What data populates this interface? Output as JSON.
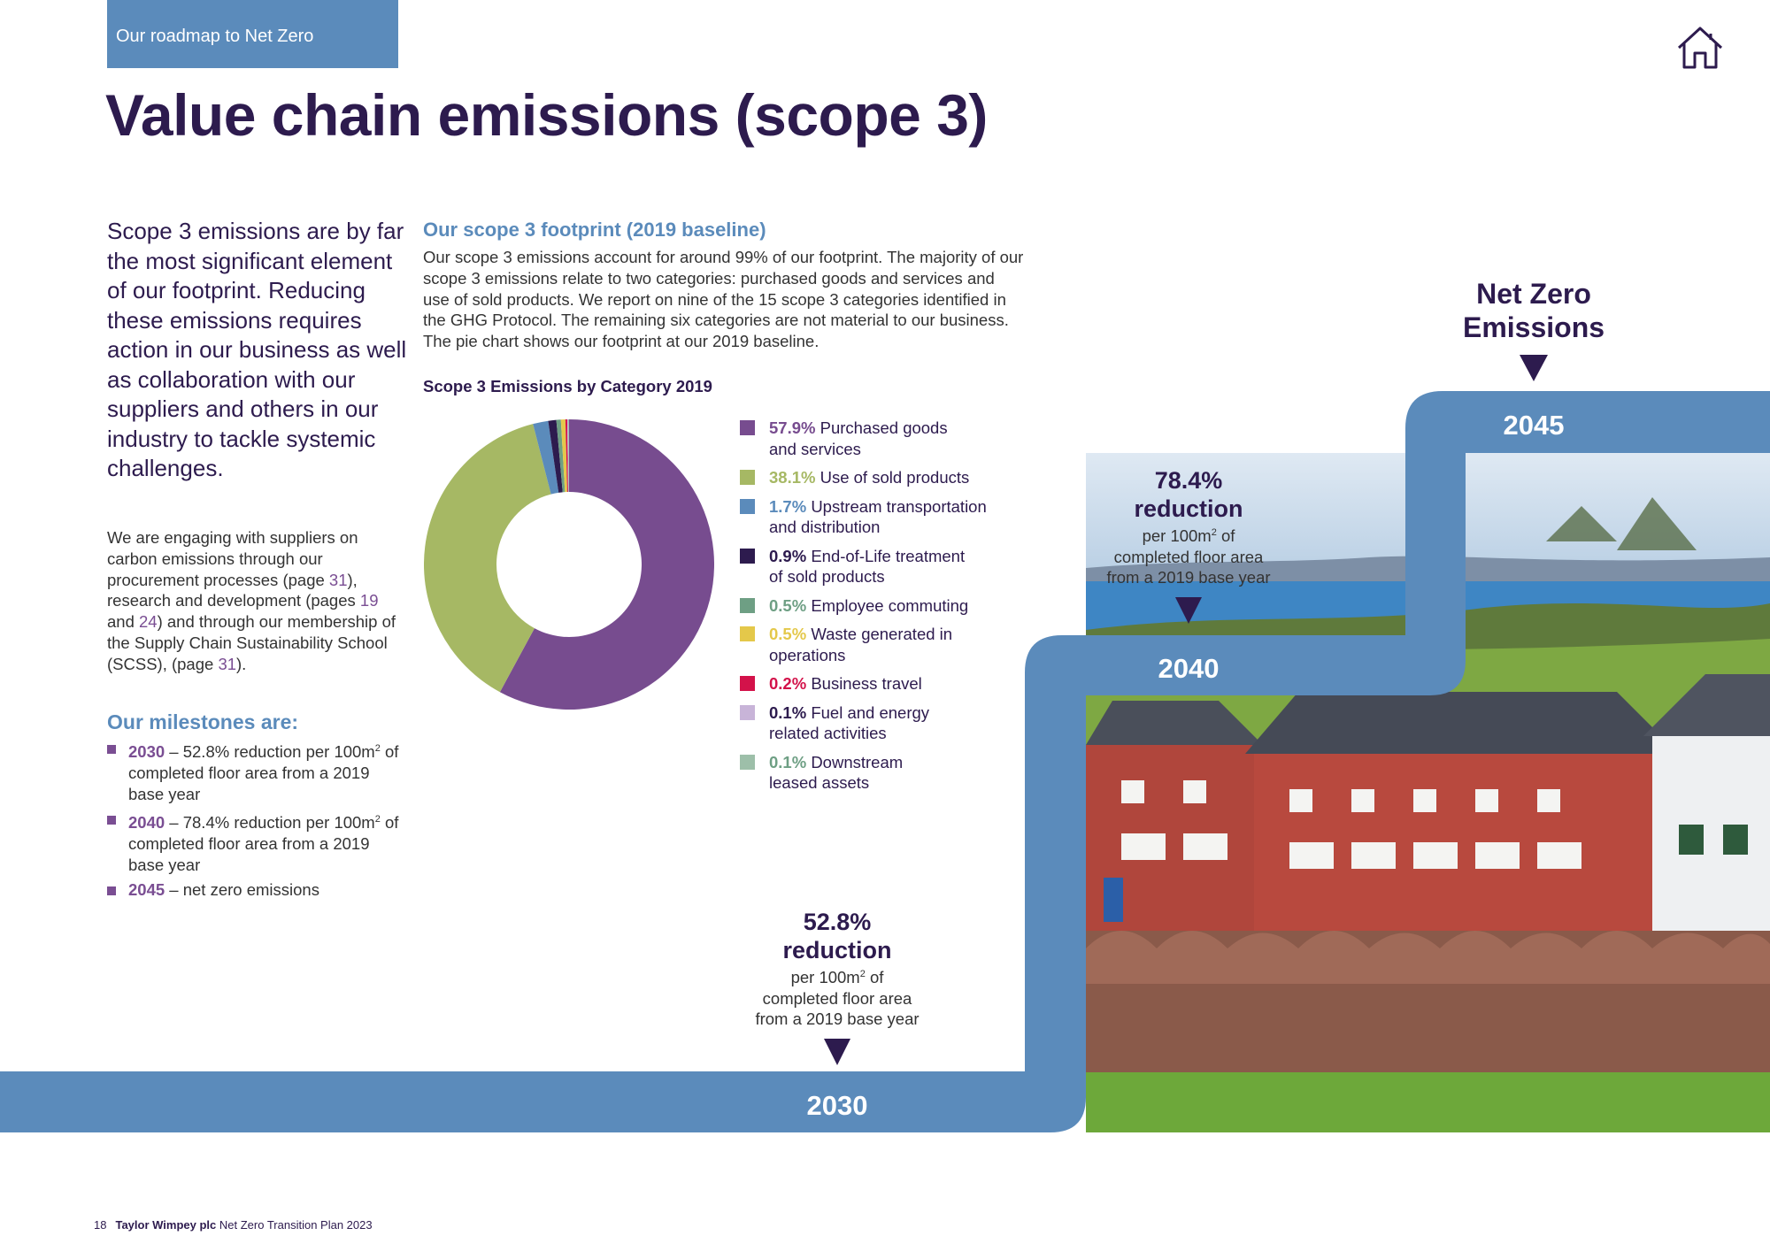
{
  "header": {
    "section_tab": "Our roadmap to Net Zero",
    "title": "Value chain emissions (scope 3)",
    "home_icon": "home-icon"
  },
  "intro": {
    "lead": "Scope 3 emissions are by far the most significant element of our footprint. Reducing these emissions requires action in our business as well as collaboration with our suppliers and others in our industry to tackle systemic challenges.",
    "body": {
      "t1": "We are engaging with suppliers on carbon emissions through our procurement processes (page ",
      "p1": "31",
      "t2": "), research and development (pages ",
      "p2": "19",
      "t3": " and ",
      "p3": "24",
      "t4": ") and through our membership of the Supply Chain Sustainability School (SCSS), (page ",
      "p4": "31",
      "t5": ")."
    }
  },
  "milestones": {
    "heading": "Our milestones are:",
    "items": [
      {
        "year": "2030",
        "text_before": " – 52.8% reduction per 100m",
        "sup": "2",
        "text_after": " of completed floor area from a 2019 base year"
      },
      {
        "year": "2040",
        "text_before": " – 78.4% reduction per 100m",
        "sup": "2",
        "text_after": " of completed floor area from a 2019 base year"
      },
      {
        "year": "2045",
        "text_before": " – net zero emissions",
        "sup": "",
        "text_after": ""
      }
    ]
  },
  "footprint": {
    "heading": "Our scope 3 footprint (2019 baseline)",
    "body": "Our scope 3 emissions account for around 99% of our footprint. The majority of our scope 3 emissions relate to two categories: purchased goods and services and use of sold products. We report on nine of the 15 scope 3 categories identified in the GHG Protocol. The remaining six categories are not material to our business. The pie chart shows our footprint at our 2019 baseline."
  },
  "chart_data": {
    "type": "pie",
    "style": "donut",
    "title": "Scope 3 Emissions by Category 2019",
    "legend_position": "right",
    "slices": [
      {
        "label_line1": "Purchased goods",
        "label_line2": "and services",
        "pct_label": "57.9%",
        "value": 57.9,
        "color": "#774c8f"
      },
      {
        "label_line1": "Use of sold products",
        "label_line2": "",
        "pct_label": "38.1%",
        "value": 38.1,
        "color": "#a6b864"
      },
      {
        "label_line1": "Upstream transportation",
        "label_line2": "and distribution",
        "pct_label": "1.7%",
        "value": 1.7,
        "color": "#5b8bbb"
      },
      {
        "label_line1": "End-of-Life treatment",
        "label_line2": "of sold products",
        "pct_label": "0.9%",
        "value": 0.9,
        "color": "#2d1b4e"
      },
      {
        "label_line1": "Employee commuting",
        "label_line2": "",
        "pct_label": "0.5%",
        "value": 0.5,
        "color": "#6e9f84"
      },
      {
        "label_line1": "Waste generated in",
        "label_line2": "operations",
        "pct_label": "0.5%",
        "value": 0.5,
        "color": "#e4c84a"
      },
      {
        "label_line1": "Business travel",
        "label_line2": "",
        "pct_label": "0.2%",
        "value": 0.2,
        "color": "#d3124a"
      },
      {
        "label_line1": "Fuel and energy",
        "label_line2": "related activities",
        "pct_label": "0.1%",
        "value": 0.1,
        "color": "#c8b4d8"
      },
      {
        "label_line1": "Downstream",
        "label_line2": "leased assets",
        "pct_label": "0.1%",
        "value": 0.1,
        "color": "#9dbfa9"
      }
    ]
  },
  "roadmap": {
    "step_color": "#5b8bbb",
    "y2030": {
      "year": "2030",
      "big1": "52.8%",
      "big2": "reduction",
      "s1": "per 100m",
      "sup": "2",
      "s1b": " of",
      "s2": "completed floor area",
      "s3": "from a 2019 base year"
    },
    "y2040": {
      "year": "2040",
      "big1": "78.4%",
      "big2": "reduction",
      "s1": "per 100m",
      "sup": "2",
      "s1b": " of",
      "s2": "completed floor area",
      "s3": "from a 2019 base year"
    },
    "y2045": {
      "year": "2045",
      "l1": "Net Zero",
      "l2": "Emissions"
    }
  },
  "footer": {
    "page_number": "18",
    "company": "Taylor Wimpey plc",
    "doc": " Net Zero Transition Plan 2023"
  }
}
